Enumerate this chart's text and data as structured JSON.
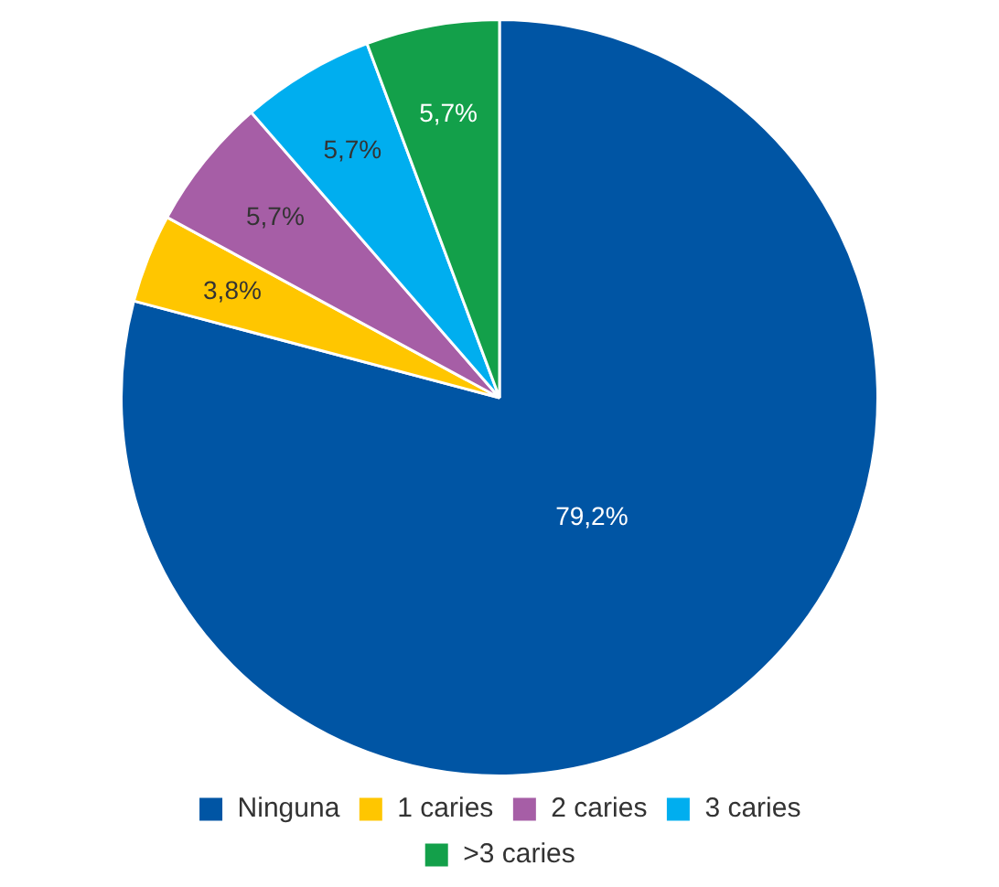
{
  "chart_data": {
    "type": "pie",
    "categories": [
      "Ninguna",
      "1 caries",
      "2 caries",
      "3 caries",
      ">3 caries"
    ],
    "values": [
      79.2,
      3.8,
      5.7,
      5.7,
      5.7
    ],
    "value_labels": [
      "79,2%",
      "3,8%",
      "5,7%",
      "5,7%",
      "5,7%"
    ],
    "colors": [
      "#0055a4",
      "#ffc600",
      "#a65ea6",
      "#00aeef",
      "#13a04a"
    ],
    "legend": "bottom"
  }
}
